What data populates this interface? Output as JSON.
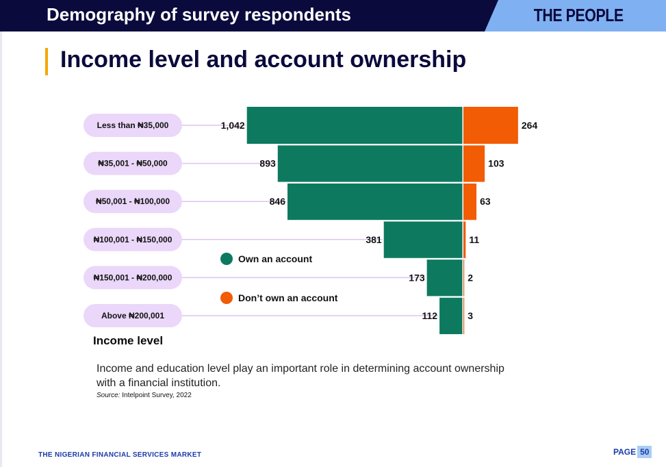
{
  "header": {
    "section_title": "Demography of survey respondents",
    "brand": "THE PEOPLE"
  },
  "heading": "Income level and account ownership",
  "chart_data": {
    "type": "bar",
    "orientation": "horizontal-diverging",
    "categories": [
      "Less than ₦35,000",
      "₦35,001 - ₦50,000",
      "₦50,001 - ₦100,000",
      "₦100,001 - ₦150,000",
      "₦150,001 - ₦200,000",
      "Above ₦200,001"
    ],
    "series": [
      {
        "name": "Own an account",
        "values": [
          1042,
          893,
          846,
          381,
          173,
          112
        ],
        "labels": [
          "1,042",
          "893",
          "846",
          "381",
          "173",
          "112"
        ],
        "color": "#0d7a5f"
      },
      {
        "name": "Don’t own an account",
        "values": [
          264,
          103,
          63,
          11,
          2,
          3
        ],
        "labels": [
          "264",
          "103",
          "63",
          "11",
          "2",
          "3"
        ],
        "color": "#f25c05"
      }
    ],
    "ylabel": "Income level",
    "legend_position": "center-left",
    "grid": false
  },
  "note": "Income and education level play an important role in determining account ownership with a financial institution.",
  "source": {
    "prefix": "Source:",
    "text": " Intelpoint Survey, 2022"
  },
  "footer": {
    "left": "THE NIGERIAN FINANCIAL SERVICES MARKET",
    "page_label": "PAGE",
    "page_number": "50"
  },
  "colors": {
    "header_bg": "#0a0a3c",
    "brand_bg": "#7fb0f2",
    "accent": "#f5a800",
    "pill_bg": "#ead7f9",
    "footer_text": "#1a3aa8"
  }
}
